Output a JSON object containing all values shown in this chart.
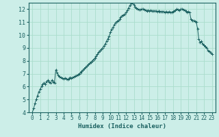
{
  "title": "",
  "xlabel": "Humidex (Indice chaleur)",
  "ylabel": "",
  "bg_color": "#cceee8",
  "plot_bg_color": "#cceee8",
  "grid_color": "#aaddcc",
  "line_color": "#1a6060",
  "marker_color": "#1a6060",
  "xlim": [
    -0.5,
    23.5
  ],
  "ylim": [
    4,
    12.5
  ],
  "yticks": [
    4,
    5,
    6,
    7,
    8,
    9,
    10,
    11,
    12
  ],
  "xticks": [
    0,
    1,
    2,
    3,
    4,
    5,
    6,
    7,
    8,
    9,
    10,
    11,
    12,
    13,
    14,
    15,
    16,
    17,
    18,
    19,
    20,
    21,
    22,
    23
  ],
  "x": [
    0,
    0.17,
    0.33,
    0.5,
    0.67,
    0.83,
    1.0,
    1.17,
    1.33,
    1.5,
    1.67,
    1.83,
    2.0,
    2.17,
    2.33,
    2.5,
    2.67,
    2.83,
    3.0,
    3.17,
    3.33,
    3.5,
    3.67,
    3.83,
    4.0,
    4.17,
    4.33,
    4.5,
    4.67,
    4.83,
    5.0,
    5.17,
    5.33,
    5.5,
    5.67,
    5.83,
    6.0,
    6.17,
    6.33,
    6.5,
    6.67,
    6.83,
    7.0,
    7.17,
    7.33,
    7.5,
    7.67,
    7.83,
    8.0,
    8.17,
    8.33,
    8.5,
    8.67,
    8.83,
    9.0,
    9.17,
    9.33,
    9.5,
    9.67,
    9.83,
    10.0,
    10.17,
    10.33,
    10.5,
    10.67,
    10.83,
    11.0,
    11.17,
    11.33,
    11.5,
    11.67,
    11.83,
    12.0,
    12.17,
    12.33,
    12.5,
    12.67,
    12.83,
    13.0,
    13.17,
    13.33,
    13.5,
    13.67,
    13.83,
    14.0,
    14.17,
    14.33,
    14.5,
    14.67,
    14.83,
    15.0,
    15.17,
    15.33,
    15.5,
    15.67,
    15.83,
    16.0,
    16.17,
    16.33,
    16.5,
    16.67,
    16.83,
    17.0,
    17.17,
    17.33,
    17.5,
    17.67,
    17.83,
    18.0,
    18.17,
    18.33,
    18.5,
    18.67,
    18.83,
    19.0,
    19.17,
    19.33,
    19.5,
    19.67,
    19.83,
    20.0,
    20.17,
    20.33,
    20.5,
    20.67,
    20.83,
    21.0,
    21.17,
    21.33,
    21.5,
    21.67,
    21.83,
    22.0,
    22.17,
    22.33,
    22.5,
    22.67,
    22.83,
    23.0
  ],
  "y": [
    4.0,
    4.3,
    4.7,
    5.0,
    5.3,
    5.6,
    5.8,
    6.0,
    6.2,
    6.3,
    6.2,
    6.4,
    6.5,
    6.35,
    6.3,
    6.5,
    6.35,
    6.3,
    7.3,
    7.1,
    6.85,
    6.75,
    6.7,
    6.65,
    6.6,
    6.65,
    6.6,
    6.55,
    6.6,
    6.7,
    6.65,
    6.7,
    6.75,
    6.8,
    6.85,
    6.9,
    7.0,
    7.1,
    7.2,
    7.3,
    7.4,
    7.5,
    7.6,
    7.7,
    7.8,
    7.9,
    8.0,
    8.1,
    8.2,
    8.35,
    8.5,
    8.65,
    8.8,
    8.9,
    9.0,
    9.15,
    9.3,
    9.5,
    9.7,
    9.9,
    10.2,
    10.45,
    10.6,
    10.8,
    10.95,
    11.05,
    11.1,
    11.2,
    11.4,
    11.5,
    11.55,
    11.6,
    11.75,
    11.9,
    12.1,
    12.3,
    12.45,
    12.5,
    12.35,
    12.2,
    12.1,
    12.0,
    11.95,
    11.95,
    12.0,
    12.0,
    11.95,
    11.9,
    11.85,
    11.9,
    11.85,
    11.9,
    11.88,
    11.85,
    11.87,
    11.85,
    11.83,
    11.85,
    11.83,
    11.8,
    11.82,
    11.8,
    11.78,
    11.8,
    11.75,
    11.8,
    11.78,
    11.75,
    11.8,
    11.85,
    11.9,
    12.0,
    11.95,
    11.9,
    12.0,
    12.0,
    11.95,
    11.9,
    11.85,
    11.75,
    11.8,
    11.75,
    11.2,
    11.1,
    11.1,
    11.05,
    11.0,
    10.5,
    9.7,
    9.4,
    9.5,
    9.3,
    9.2,
    9.1,
    9.0,
    8.8,
    8.75,
    8.6,
    8.5
  ]
}
